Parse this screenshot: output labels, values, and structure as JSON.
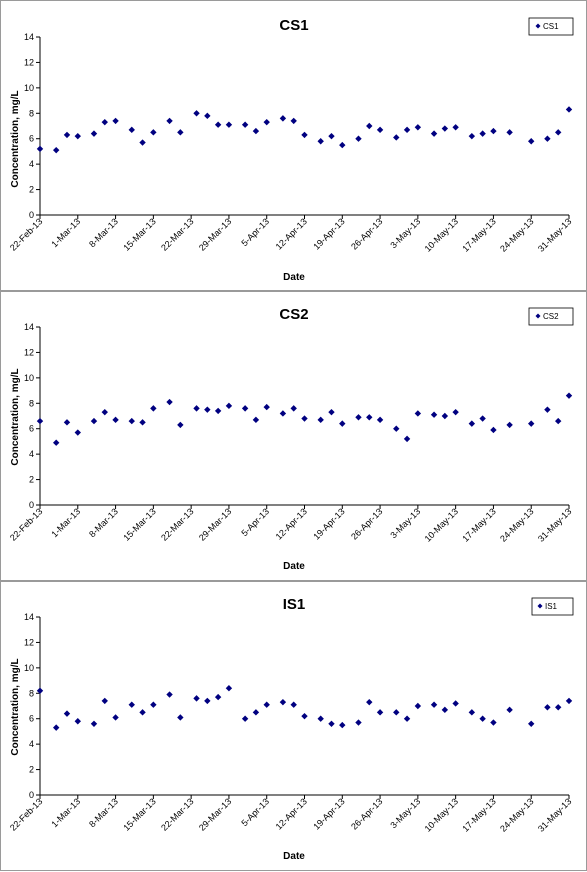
{
  "chart_data": [
    {
      "type": "scatter",
      "title": "CS1",
      "xlabel": "Date",
      "ylabel": "Concentration, mg/L",
      "ylim": [
        0,
        14
      ],
      "yticks": [
        "0",
        "2",
        "4",
        "6",
        "8",
        "10",
        "12",
        "14"
      ],
      "xlim": [
        "2013-02-22",
        "2013-05-31"
      ],
      "xticks": [
        {
          "date": "2013-02-22",
          "label": "22-Feb-13"
        },
        {
          "date": "2013-03-01",
          "label": "1-Mar-13"
        },
        {
          "date": "2013-03-08",
          "label": "8-Mar-13"
        },
        {
          "date": "2013-03-15",
          "label": "15-Mar-13"
        },
        {
          "date": "2013-03-22",
          "label": "22-Mar-13"
        },
        {
          "date": "2013-03-29",
          "label": "29-Mar-13"
        },
        {
          "date": "2013-04-05",
          "label": "5-Apr-13"
        },
        {
          "date": "2013-04-12",
          "label": "12-Apr-13"
        },
        {
          "date": "2013-04-19",
          "label": "19-Apr-13"
        },
        {
          "date": "2013-04-26",
          "label": "26-Apr-13"
        },
        {
          "date": "2013-05-03",
          "label": "3-May-13"
        },
        {
          "date": "2013-05-10",
          "label": "10-May-13"
        },
        {
          "date": "2013-05-17",
          "label": "17-May-13"
        },
        {
          "date": "2013-05-24",
          "label": "24-May-13"
        },
        {
          "date": "2013-05-31",
          "label": "31-May-13"
        }
      ],
      "grid": false,
      "legend_position": "top-right",
      "color": "#000080",
      "series": [
        {
          "name": "CS1",
          "points": [
            [
              "2013-02-22",
              5.2
            ],
            [
              "2013-02-25",
              5.1
            ],
            [
              "2013-02-27",
              6.3
            ],
            [
              "2013-03-01",
              6.2
            ],
            [
              "2013-03-04",
              6.4
            ],
            [
              "2013-03-06",
              7.3
            ],
            [
              "2013-03-08",
              7.4
            ],
            [
              "2013-03-11",
              6.7
            ],
            [
              "2013-03-13",
              5.7
            ],
            [
              "2013-03-15",
              6.5
            ],
            [
              "2013-03-18",
              7.4
            ],
            [
              "2013-03-20",
              6.5
            ],
            [
              "2013-03-23",
              8.0
            ],
            [
              "2013-03-25",
              7.8
            ],
            [
              "2013-03-27",
              7.1
            ],
            [
              "2013-03-29",
              7.1
            ],
            [
              "2013-04-01",
              7.1
            ],
            [
              "2013-04-03",
              6.6
            ],
            [
              "2013-04-05",
              7.3
            ],
            [
              "2013-04-08",
              7.6
            ],
            [
              "2013-04-10",
              7.4
            ],
            [
              "2013-04-12",
              6.3
            ],
            [
              "2013-04-15",
              5.8
            ],
            [
              "2013-04-17",
              6.2
            ],
            [
              "2013-04-19",
              5.5
            ],
            [
              "2013-04-22",
              6.0
            ],
            [
              "2013-04-24",
              7.0
            ],
            [
              "2013-04-26",
              6.7
            ],
            [
              "2013-04-29",
              6.1
            ],
            [
              "2013-05-01",
              6.7
            ],
            [
              "2013-05-03",
              6.9
            ],
            [
              "2013-05-06",
              6.4
            ],
            [
              "2013-05-08",
              6.8
            ],
            [
              "2013-05-10",
              6.9
            ],
            [
              "2013-05-13",
              6.2
            ],
            [
              "2013-05-15",
              6.4
            ],
            [
              "2013-05-17",
              6.6
            ],
            [
              "2013-05-20",
              6.5
            ],
            [
              "2013-05-24",
              5.8
            ],
            [
              "2013-05-27",
              6.0
            ],
            [
              "2013-05-29",
              6.5
            ],
            [
              "2013-05-31",
              8.3
            ]
          ]
        }
      ]
    },
    {
      "type": "scatter",
      "title": "CS2",
      "xlabel": "Date",
      "ylabel": "Concentration, mg/L",
      "ylim": [
        0,
        14
      ],
      "yticks": [
        "0",
        "2",
        "4",
        "6",
        "8",
        "10",
        "12",
        "14"
      ],
      "xlim": [
        "2013-02-22",
        "2013-05-31"
      ],
      "xticks": [
        {
          "date": "2013-02-22",
          "label": "22-Feb-13"
        },
        {
          "date": "2013-03-01",
          "label": "1-Mar-13"
        },
        {
          "date": "2013-03-08",
          "label": "8-Mar-13"
        },
        {
          "date": "2013-03-15",
          "label": "15-Mar-13"
        },
        {
          "date": "2013-03-22",
          "label": "22-Mar-13"
        },
        {
          "date": "2013-03-29",
          "label": "29-Mar-13"
        },
        {
          "date": "2013-04-05",
          "label": "5-Apr-13"
        },
        {
          "date": "2013-04-12",
          "label": "12-Apr-13"
        },
        {
          "date": "2013-04-19",
          "label": "19-Apr-13"
        },
        {
          "date": "2013-04-26",
          "label": "26-Apr-13"
        },
        {
          "date": "2013-05-03",
          "label": "3-May-13"
        },
        {
          "date": "2013-05-10",
          "label": "10-May-13"
        },
        {
          "date": "2013-05-17",
          "label": "17-May-13"
        },
        {
          "date": "2013-05-24",
          "label": "24-May-13"
        },
        {
          "date": "2013-05-31",
          "label": "31-May-13"
        }
      ],
      "grid": false,
      "legend_position": "top-right",
      "color": "#000080",
      "series": [
        {
          "name": "CS2",
          "points": [
            [
              "2013-02-22",
              6.6
            ],
            [
              "2013-02-25",
              4.9
            ],
            [
              "2013-02-27",
              6.5
            ],
            [
              "2013-03-01",
              5.7
            ],
            [
              "2013-03-04",
              6.6
            ],
            [
              "2013-03-06",
              7.3
            ],
            [
              "2013-03-08",
              6.7
            ],
            [
              "2013-03-11",
              6.6
            ],
            [
              "2013-03-13",
              6.5
            ],
            [
              "2013-03-15",
              7.6
            ],
            [
              "2013-03-18",
              8.1
            ],
            [
              "2013-03-20",
              6.3
            ],
            [
              "2013-03-23",
              7.6
            ],
            [
              "2013-03-25",
              7.5
            ],
            [
              "2013-03-27",
              7.4
            ],
            [
              "2013-03-29",
              7.8
            ],
            [
              "2013-04-01",
              7.6
            ],
            [
              "2013-04-03",
              6.7
            ],
            [
              "2013-04-05",
              7.7
            ],
            [
              "2013-04-08",
              7.2
            ],
            [
              "2013-04-10",
              7.6
            ],
            [
              "2013-04-12",
              6.8
            ],
            [
              "2013-04-15",
              6.7
            ],
            [
              "2013-04-17",
              7.3
            ],
            [
              "2013-04-19",
              6.4
            ],
            [
              "2013-04-22",
              6.9
            ],
            [
              "2013-04-24",
              6.9
            ],
            [
              "2013-04-26",
              6.7
            ],
            [
              "2013-04-29",
              6.0
            ],
            [
              "2013-05-01",
              5.2
            ],
            [
              "2013-05-03",
              7.2
            ],
            [
              "2013-05-06",
              7.1
            ],
            [
              "2013-05-08",
              7.0
            ],
            [
              "2013-05-10",
              7.3
            ],
            [
              "2013-05-13",
              6.4
            ],
            [
              "2013-05-15",
              6.8
            ],
            [
              "2013-05-17",
              5.9
            ],
            [
              "2013-05-20",
              6.3
            ],
            [
              "2013-05-24",
              6.4
            ],
            [
              "2013-05-27",
              7.5
            ],
            [
              "2013-05-29",
              6.6
            ],
            [
              "2013-05-31",
              8.6
            ]
          ]
        }
      ]
    },
    {
      "type": "scatter",
      "title": "IS1",
      "xlabel": "Date",
      "ylabel": "Concentration, mg/L",
      "ylim": [
        0,
        14
      ],
      "yticks": [
        "0",
        "2",
        "4",
        "6",
        "8",
        "10",
        "12",
        "14"
      ],
      "xlim": [
        "2013-02-22",
        "2013-05-31"
      ],
      "xticks": [
        {
          "date": "2013-02-22",
          "label": "22-Feb-13"
        },
        {
          "date": "2013-03-01",
          "label": "1-Mar-13"
        },
        {
          "date": "2013-03-08",
          "label": "8-Mar-13"
        },
        {
          "date": "2013-03-15",
          "label": "15-Mar-13"
        },
        {
          "date": "2013-03-22",
          "label": "22-Mar-13"
        },
        {
          "date": "2013-03-29",
          "label": "29-Mar-13"
        },
        {
          "date": "2013-04-05",
          "label": "5-Apr-13"
        },
        {
          "date": "2013-04-12",
          "label": "12-Apr-13"
        },
        {
          "date": "2013-04-19",
          "label": "19-Apr-13"
        },
        {
          "date": "2013-04-26",
          "label": "26-Apr-13"
        },
        {
          "date": "2013-05-03",
          "label": "3-May-13"
        },
        {
          "date": "2013-05-10",
          "label": "10-May-13"
        },
        {
          "date": "2013-05-17",
          "label": "17-May-13"
        },
        {
          "date": "2013-05-24",
          "label": "24-May-13"
        },
        {
          "date": "2013-05-31",
          "label": "31-May-13"
        }
      ],
      "grid": false,
      "legend_position": "top-right",
      "color": "#000080",
      "series": [
        {
          "name": "IS1",
          "points": [
            [
              "2013-02-22",
              8.2
            ],
            [
              "2013-02-25",
              5.3
            ],
            [
              "2013-02-27",
              6.4
            ],
            [
              "2013-03-01",
              5.8
            ],
            [
              "2013-03-04",
              5.6
            ],
            [
              "2013-03-06",
              7.4
            ],
            [
              "2013-03-08",
              6.1
            ],
            [
              "2013-03-11",
              7.1
            ],
            [
              "2013-03-13",
              6.5
            ],
            [
              "2013-03-15",
              7.1
            ],
            [
              "2013-03-18",
              7.9
            ],
            [
              "2013-03-20",
              6.1
            ],
            [
              "2013-03-23",
              7.6
            ],
            [
              "2013-03-25",
              7.4
            ],
            [
              "2013-03-27",
              7.7
            ],
            [
              "2013-03-29",
              8.4
            ],
            [
              "2013-04-01",
              6.0
            ],
            [
              "2013-04-03",
              6.5
            ],
            [
              "2013-04-05",
              7.1
            ],
            [
              "2013-04-08",
              7.3
            ],
            [
              "2013-04-10",
              7.1
            ],
            [
              "2013-04-12",
              6.2
            ],
            [
              "2013-04-15",
              6.0
            ],
            [
              "2013-04-17",
              5.6
            ],
            [
              "2013-04-19",
              5.5
            ],
            [
              "2013-04-22",
              5.7
            ],
            [
              "2013-04-24",
              7.3
            ],
            [
              "2013-04-26",
              6.5
            ],
            [
              "2013-04-29",
              6.5
            ],
            [
              "2013-05-01",
              6.0
            ],
            [
              "2013-05-03",
              7.0
            ],
            [
              "2013-05-06",
              7.1
            ],
            [
              "2013-05-08",
              6.7
            ],
            [
              "2013-05-10",
              7.2
            ],
            [
              "2013-05-13",
              6.5
            ],
            [
              "2013-05-15",
              6.0
            ],
            [
              "2013-05-17",
              5.7
            ],
            [
              "2013-05-20",
              6.7
            ],
            [
              "2013-05-24",
              5.6
            ],
            [
              "2013-05-27",
              6.9
            ],
            [
              "2013-05-29",
              6.9
            ],
            [
              "2013-05-31",
              7.4
            ]
          ]
        }
      ]
    }
  ]
}
